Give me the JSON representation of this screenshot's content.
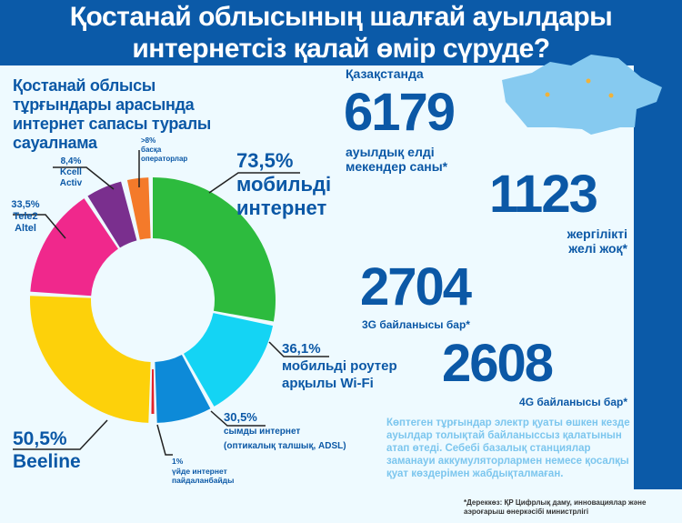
{
  "header": {
    "title_line1": "Қостанай облысының шалғай ауылдары",
    "title_line2": "интернетсіз қалай өмір сүруде?"
  },
  "survey_title": [
    "Қостанай облысы",
    "тұрғындары арасында",
    "интернет сапасы туралы",
    "сауалнама"
  ],
  "chart_data": {
    "type": "pie",
    "title": "Қостанай облысы тұрғындары арасында интернет сапасы туралы сауалнама",
    "slices": [
      {
        "label": "мобильді интернет",
        "value": 73.5,
        "value_text": "73,5%",
        "color": "#2dbb3e"
      },
      {
        "label": "мобильді роутер арқылы Wi-Fi",
        "value": 36.1,
        "value_text": "36,1%",
        "color": "#14d4f4"
      },
      {
        "label": "сымды интернет (оптикалық талшық, ADSL)",
        "value": 30.5,
        "value_text": "30,5%",
        "color": "#0d8ad8"
      },
      {
        "label": "үйде интернет пайдаланбайды",
        "value": 1,
        "value_text": "1%",
        "color": "#e2232b"
      },
      {
        "label": "Beeline",
        "value": 50.5,
        "value_text": "50,5%",
        "color": "#fdd10a"
      },
      {
        "label": "Tele2 Altel",
        "value": 33.5,
        "value_text": "33,5%",
        "color": "#f0288c"
      },
      {
        "label": "Kcell Activ",
        "value": 8.4,
        "value_text": "8,4%",
        "color": "#7a2f8e"
      },
      {
        "label": "басқа операторлар",
        "value": 8,
        "value_text": ">8%",
        "color": "#f47a2a"
      }
    ]
  },
  "labels": {
    "mobile_pct": "73,5%",
    "mobile_1": "мобильді",
    "mobile_2": "интернет",
    "wifi_pct": "36,1%",
    "wifi_1": "мобильді роутер",
    "wifi_2": "арқылы Wi-Fi",
    "wired_pct": "30,5%",
    "wired_1": "сымды интернет",
    "wired_2": "(оптикалық талшық, ADSL)",
    "none_pct": "1%",
    "none_1": "үйде интернет",
    "none_2": "пайдаланбайды",
    "beeline_pct": "50,5%",
    "beeline": "Beeline",
    "tele2_pct": "33,5%",
    "tele2_1": "Tele2",
    "tele2_2": "Altel",
    "kcell_pct": "8,4%",
    "kcell_1": "Kcell",
    "kcell_2": "Activ",
    "other_pct": ">8%",
    "other_1": "басқа",
    "other_2": "операторлар"
  },
  "stats": [
    {
      "pre": "Қазақстанда",
      "number": "6179",
      "text1": "ауылдық елді",
      "text2": "мекендер саны*"
    },
    {
      "number": "1123",
      "text1": "жергілікті",
      "text2": "желі жоқ*"
    },
    {
      "number": "2704",
      "text1": "3G байланысы бар*"
    },
    {
      "number": "2608",
      "text1": "4G байланысы бар*"
    }
  ],
  "note": "Көптеген тұрғындар электр қуаты өшкен кезде ауылдар толықтай байланыссыз қалатынын атап өтеді. Себебі базалық станциялар заманауи аккумуляторлармен немесе қосалқы қуат көздерімен жабдықталмаған.",
  "source": "*Дереккөз: ҚР Цифрлық даму, инновациялар және аэроғарыш өнеркәсібі министрлігі"
}
